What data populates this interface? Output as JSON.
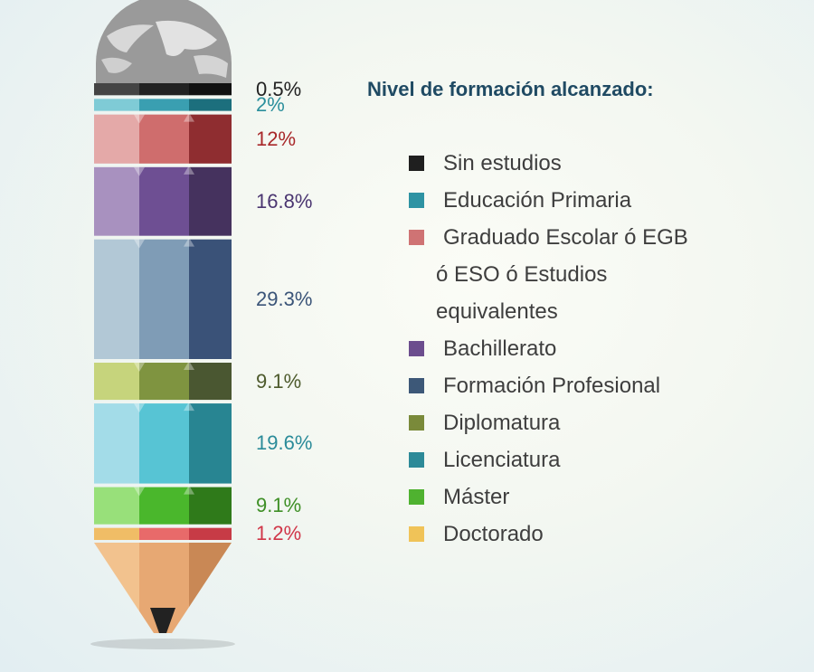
{
  "chart_data": {
    "type": "bar",
    "title": "Nivel de formación alcanzado:",
    "categories": [
      "Sin estudios",
      "Educación Primaria",
      "Graduado Escolar ó EGB ó ESO ó Estudios equivalentes",
      "Bachillerato",
      "Formación Profesional",
      "Diplomatura",
      "Licenciatura",
      "Máster",
      "Doctorado"
    ],
    "values": [
      0.5,
      2,
      12,
      16.8,
      29.3,
      9.1,
      19.6,
      9.1,
      1.2
    ],
    "value_labels": [
      "0.5%",
      "2%",
      "12%",
      "16.8%",
      "29.3%",
      "9.1%",
      "19.6%",
      "9.1%",
      "1.2%"
    ],
    "unit": "%",
    "colors": {
      "light": [
        "#444444",
        "#7fcbd6",
        "#e4a9a8",
        "#a891bf",
        "#b2c8d6",
        "#c6d47c",
        "#a3dce8",
        "#98e07a",
        "#f0bd66"
      ],
      "mid": [
        "#222222",
        "#3a9fb1",
        "#cf6d6d",
        "#6e4f93",
        "#7f9cb6",
        "#7f9440",
        "#57c4d4",
        "#4ab72c",
        "#e86a6a"
      ],
      "dark": [
        "#111111",
        "#1c6f7d",
        "#8f2d30",
        "#45325e",
        "#3a5278",
        "#4a5731",
        "#288592",
        "#2f7a1a",
        "#c73b46"
      ],
      "label": [
        "#222222",
        "#2b8f9c",
        "#a8282a",
        "#4a3570",
        "#3a5478",
        "#4d5a2c",
        "#2a8b99",
        "#3e8f26",
        "#d03648"
      ]
    },
    "legend_colors": [
      "#1f1f1f",
      "#2e93a3",
      "#cf7374",
      "#6c4d8e",
      "#3d5878",
      "#7a8a3a",
      "#2d8a98",
      "#4fb230",
      "#f0c358"
    ],
    "legend_placement": "right"
  },
  "legend": {
    "title": "Nivel de formación alcanzado:",
    "items": [
      {
        "label": "Sin estudios",
        "lines": [
          "Sin estudios"
        ]
      },
      {
        "label": "Educación Primaria",
        "lines": [
          "Educación Primaria"
        ]
      },
      {
        "label": "Graduado Escolar ó EGB ó ESO ó Estudios equivalentes",
        "lines": [
          "Graduado Escolar ó EGB",
          "ó ESO ó Estudios",
          "equivalentes"
        ]
      },
      {
        "label": "Bachillerato",
        "lines": [
          "Bachillerato"
        ]
      },
      {
        "label": "Formación Profesional",
        "lines": [
          "Formación Profesional"
        ]
      },
      {
        "label": "Diplomatura",
        "lines": [
          "Diplomatura"
        ]
      },
      {
        "label": "Licenciatura",
        "lines": [
          "Licenciatura"
        ]
      },
      {
        "label": "Máster",
        "lines": [
          "Máster"
        ]
      },
      {
        "label": "Doctorado",
        "lines": [
          "Doctorado"
        ]
      }
    ]
  }
}
